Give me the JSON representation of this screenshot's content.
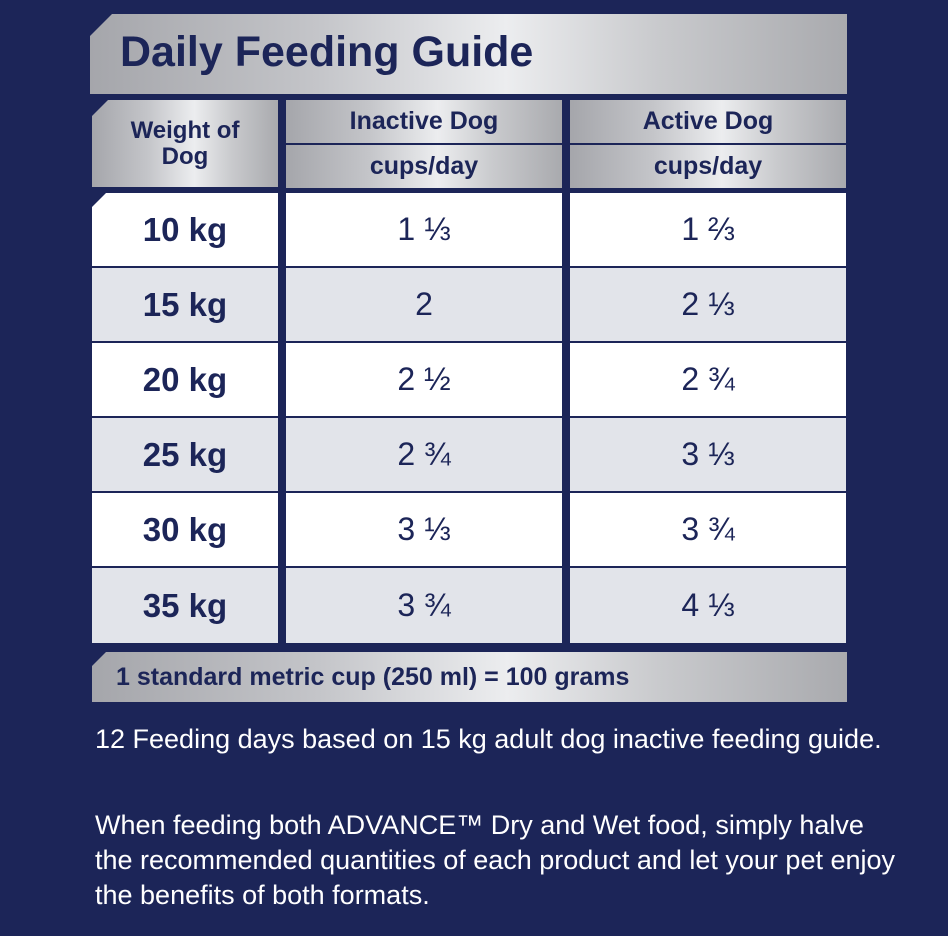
{
  "title": "Daily Feeding Guide",
  "header": {
    "weight_label": "Weight of Dog",
    "inactive_label": "Inactive Dog",
    "inactive_unit": "cups/day",
    "active_label": "Active Dog",
    "active_unit": "cups/day"
  },
  "rows": [
    {
      "weight": "10 kg",
      "inactive": "1 ⅓",
      "active": "1 ⅔"
    },
    {
      "weight": "15 kg",
      "inactive": "2",
      "active": "2 ⅓"
    },
    {
      "weight": "20 kg",
      "inactive": "2 ½",
      "active": "2 ¾"
    },
    {
      "weight": "25 kg",
      "inactive": "2 ¾",
      "active": "3 ⅓"
    },
    {
      "weight": "30 kg",
      "inactive": "3 ⅓",
      "active": "3 ¾"
    },
    {
      "weight": "35 kg",
      "inactive": "3 ¾",
      "active": "4 ⅓"
    }
  ],
  "note": "1 standard metric cup (250 ml) = 100 grams",
  "paragraphs": [
    "12 Feeding days based on 15 kg adult dog inactive feeding guide.",
    "When feeding both ADVANCE™ Dry and Wet food, simply halve the recommended quantities of each product and let your pet enjoy the benefits of both formats."
  ],
  "colors": {
    "background": "#1c2558",
    "text_dark": "#1c2558",
    "row_white": "#ffffff",
    "row_grey": "#e2e4ea",
    "header_silver": "#c4c5c9"
  }
}
